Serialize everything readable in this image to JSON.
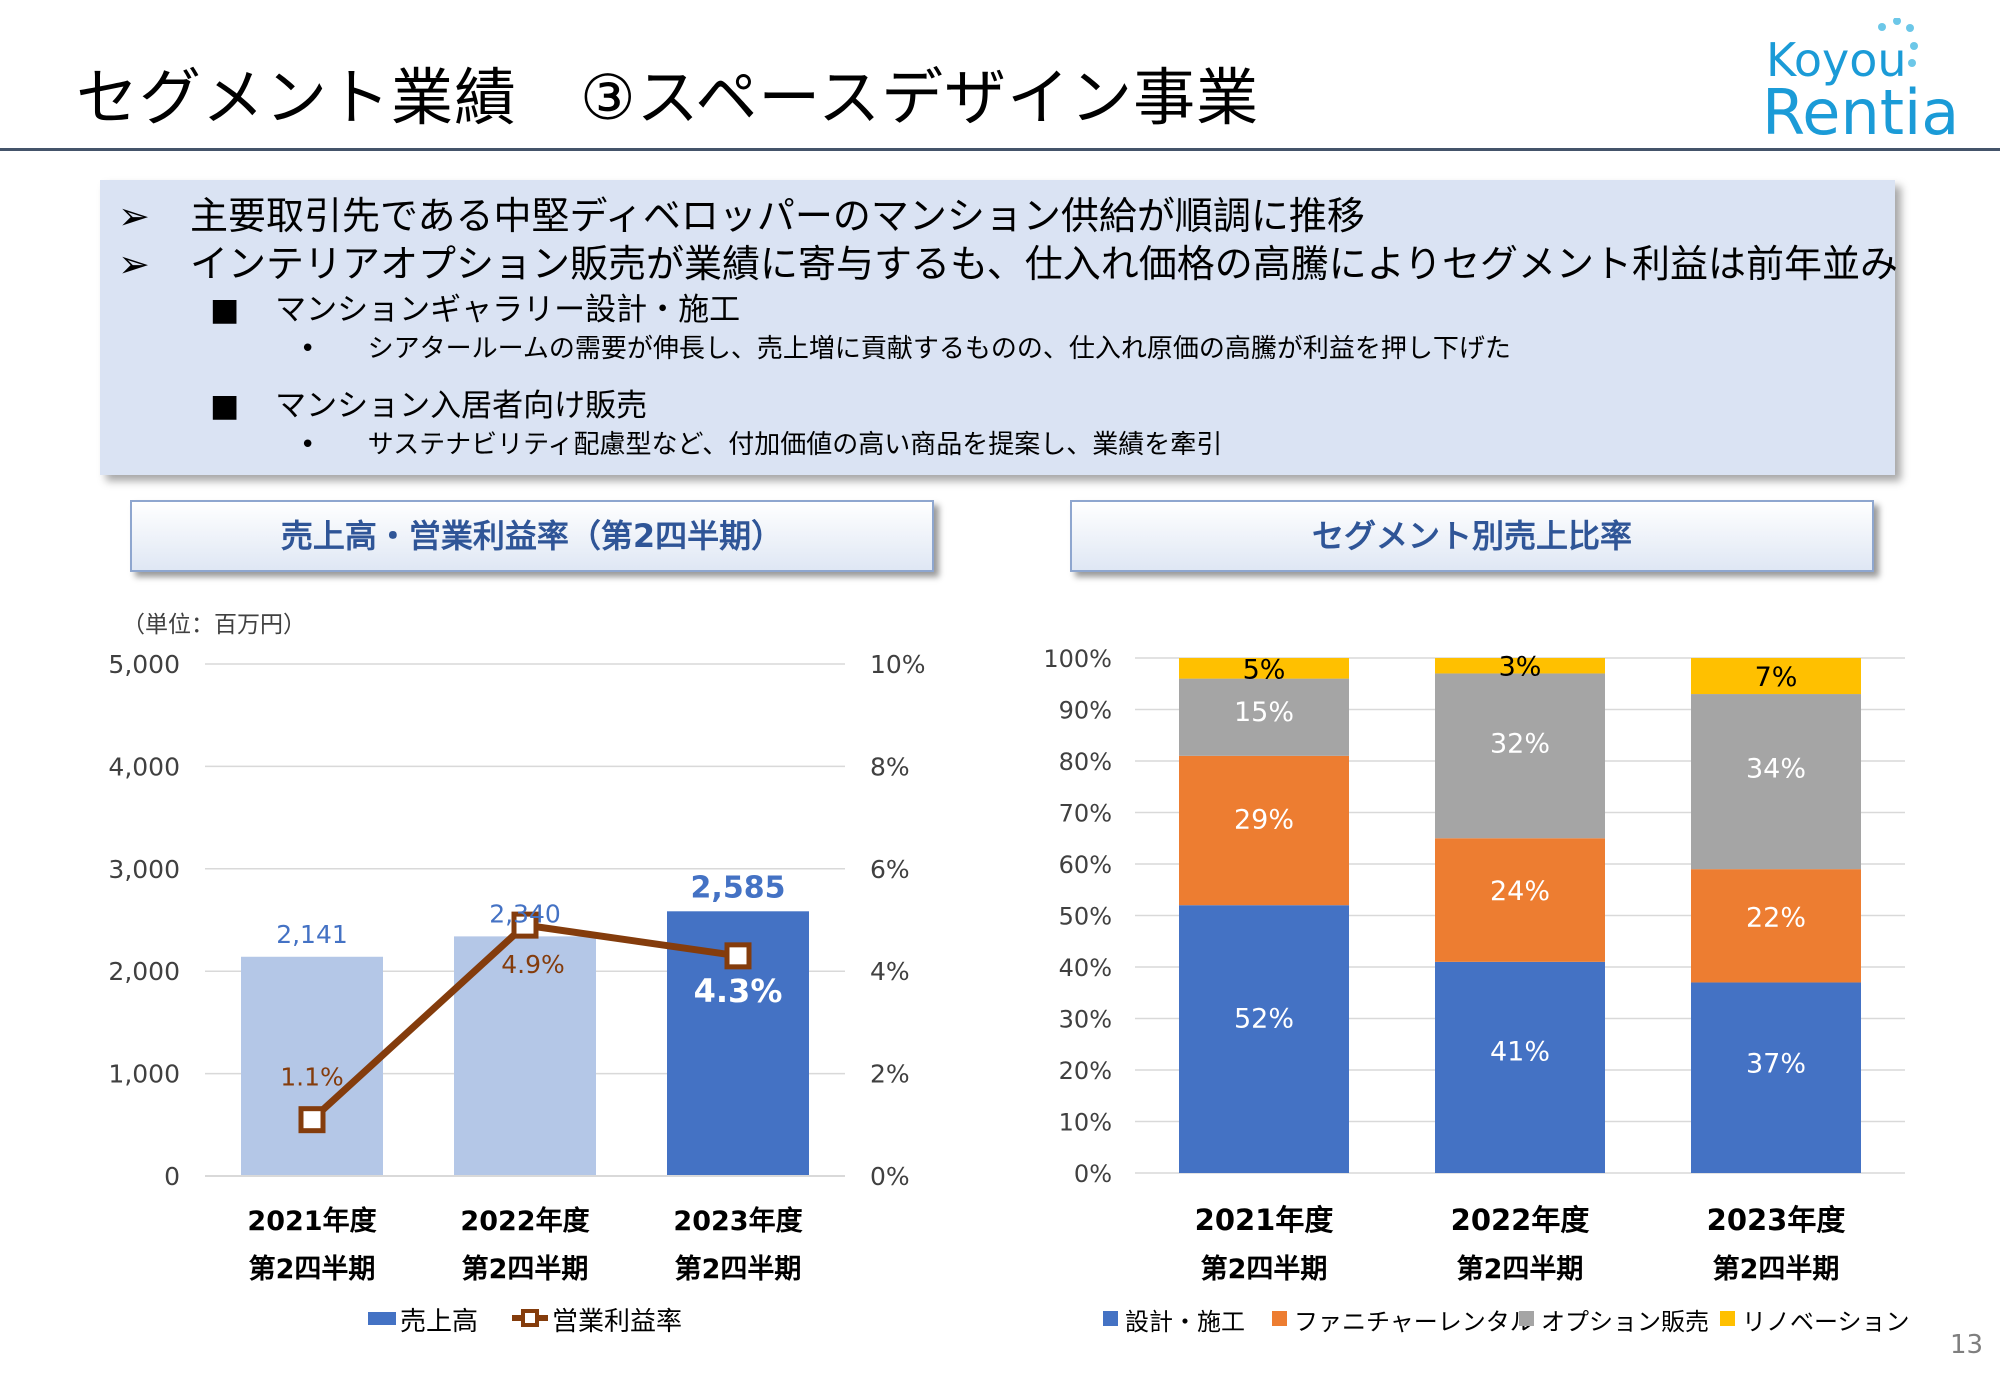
{
  "title": "セグメント業績　③スペースデザイン事業",
  "logo": {
    "line1": "Koyou",
    "line2": "Rentia"
  },
  "page_number": "13",
  "summary": {
    "points": [
      "主要取引先である中堅ディベロッパーのマンション供給が順調に推移",
      "インテリアオプション販売が業績に寄与するも、仕入れ価格の高騰によりセグメント利益は前年並み"
    ],
    "subsections": [
      {
        "title": "マンションギャラリー設計・施工",
        "detail": "シアタールームの需要が伸長し、売上増に貢献するものの、仕入れ原価の高騰が利益を押し下げた"
      },
      {
        "title": "マンション入居者向け販売",
        "detail": "サステナビリティ配慮型など、付加価値の高い商品を提案し、業績を牽引"
      }
    ]
  },
  "colors": {
    "bar_past": "#b4c7e7",
    "bar_current": "#4472c4",
    "line": "#843c0c",
    "design": "#4472c4",
    "furniture": "#ed7d31",
    "option": "#a5a5a5",
    "renovation": "#ffc000"
  },
  "chart_data": [
    {
      "type": "bar",
      "title": "売上高・営業利益率（第2四半期）",
      "unit_note": "（単位：百万円）",
      "categories": [
        [
          "2021年度",
          "第2四半期"
        ],
        [
          "2022年度",
          "第2四半期"
        ],
        [
          "2023年度",
          "第2四半期"
        ]
      ],
      "y_ticks": [
        "0",
        "1,000",
        "2,000",
        "3,000",
        "4,000",
        "5,000"
      ],
      "y2_ticks": [
        "0%",
        "2%",
        "4%",
        "6%",
        "8%",
        "10%"
      ],
      "ylim": [
        0,
        5000
      ],
      "y2lim": [
        0,
        10
      ],
      "series": [
        {
          "name": "売上高",
          "type": "bar",
          "values": [
            2141,
            2340,
            2585
          ],
          "labels": [
            "2,141",
            "2,340",
            "2,585"
          ]
        },
        {
          "name": "営業利益率",
          "type": "line",
          "values": [
            1.1,
            4.9,
            4.3
          ],
          "labels": [
            "1.1%",
            "4.9%",
            "4.3%"
          ]
        }
      ],
      "legend": "bottom",
      "grid": true
    },
    {
      "type": "bar",
      "stacked": true,
      "title": "セグメント別売上比率",
      "categories": [
        [
          "2021年度",
          "第2四半期"
        ],
        [
          "2022年度",
          "第2四半期"
        ],
        [
          "2023年度",
          "第2四半期"
        ]
      ],
      "y_ticks": [
        "0%",
        "10%",
        "20%",
        "30%",
        "40%",
        "50%",
        "60%",
        "70%",
        "80%",
        "90%",
        "100%"
      ],
      "ylim": [
        0,
        100
      ],
      "series": [
        {
          "name": "設計・施工",
          "values": [
            52,
            41,
            37
          ],
          "labels": [
            "52%",
            "41%",
            "37%"
          ]
        },
        {
          "name": "ファニチャーレンタル",
          "values": [
            29,
            24,
            22
          ],
          "labels": [
            "29%",
            "24%",
            "22%"
          ]
        },
        {
          "name": "オプション販売",
          "values": [
            15,
            32,
            34
          ],
          "labels": [
            "15%",
            "32%",
            "34%"
          ]
        },
        {
          "name": "リノベーション",
          "values": [
            5,
            3,
            7
          ],
          "labels": [
            "5%",
            "3%",
            "7%"
          ]
        }
      ],
      "legend": "bottom",
      "grid": true
    }
  ]
}
